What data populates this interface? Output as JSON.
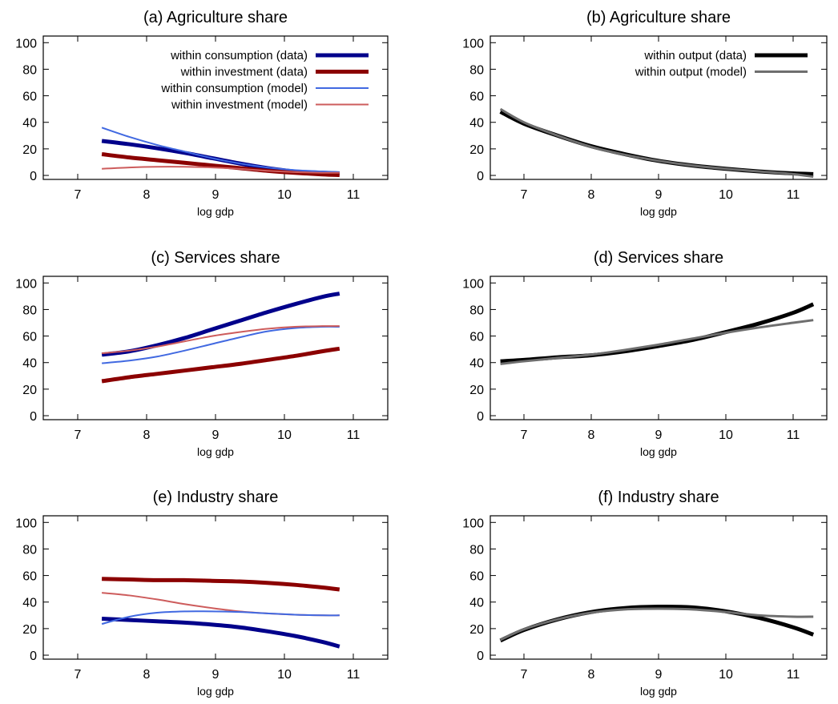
{
  "chart_data": [
    {
      "type": "line",
      "title": "(a) Agriculture share",
      "xlabel": "log gdp",
      "ylabel": "",
      "xlim": [
        6.5,
        11.5
      ],
      "ylim": [
        -3,
        105
      ],
      "xticks": [
        7,
        8,
        9,
        10,
        11
      ],
      "yticks": [
        0,
        20,
        40,
        60,
        80,
        100
      ],
      "grid": false,
      "legend": "top-right",
      "series": [
        {
          "name": "within consumption (data)",
          "color": "#00008b",
          "style": "data",
          "x": [
            7.35,
            7.75,
            8.15,
            8.55,
            8.95,
            9.35,
            9.75,
            10.15,
            10.55,
            10.8
          ],
          "y": [
            26,
            23.5,
            20.5,
            17,
            13,
            9,
            5.5,
            3,
            2,
            1.5
          ]
        },
        {
          "name": "within investment (data)",
          "color": "#8b0000",
          "style": "data",
          "x": [
            7.35,
            7.75,
            8.15,
            8.55,
            8.95,
            9.35,
            9.75,
            10.15,
            10.55,
            10.8
          ],
          "y": [
            16,
            13.5,
            11.5,
            9.5,
            7.5,
            5.5,
            3.5,
            2,
            0.8,
            0.3
          ]
        },
        {
          "name": "within consumption (model)",
          "color": "#4169e1",
          "style": "model",
          "x": [
            7.35,
            7.75,
            8.15,
            8.55,
            8.95,
            9.35,
            9.75,
            10.15,
            10.55,
            10.8
          ],
          "y": [
            36,
            29,
            23,
            18,
            13,
            9,
            6,
            4,
            3,
            2.5
          ]
        },
        {
          "name": "within investment (model)",
          "color": "#cd5c5c",
          "style": "model",
          "x": [
            7.35,
            7.75,
            8.15,
            8.55,
            8.95,
            9.35,
            9.75,
            10.15,
            10.55,
            10.8
          ],
          "y": [
            5,
            6,
            6.5,
            6.5,
            6,
            5,
            3.5,
            2.5,
            2,
            2
          ]
        }
      ]
    },
    {
      "type": "line",
      "title": "(b) Agriculture share",
      "xlabel": "log gdp",
      "ylabel": "",
      "xlim": [
        6.5,
        11.5
      ],
      "ylim": [
        -3,
        105
      ],
      "xticks": [
        7,
        8,
        9,
        10,
        11
      ],
      "yticks": [
        0,
        20,
        40,
        60,
        80,
        100
      ],
      "grid": false,
      "legend": "top-right",
      "series": [
        {
          "name": "within output (data)",
          "color": "#000000",
          "style": "data",
          "x": [
            6.65,
            7.0,
            7.5,
            8.0,
            8.5,
            9.0,
            9.5,
            10.0,
            10.5,
            11.0,
            11.3
          ],
          "y": [
            48,
            39,
            30,
            22,
            16,
            11,
            7.5,
            5,
            3,
            1.5,
            1
          ]
        },
        {
          "name": "within output (model)",
          "color": "#6e6e6e",
          "style": "model-thick",
          "x": [
            6.65,
            7.0,
            7.5,
            8.0,
            8.5,
            9.0,
            9.5,
            10.0,
            10.5,
            11.0,
            11.3
          ],
          "y": [
            50,
            40,
            30,
            21.5,
            15.5,
            11,
            7.5,
            5,
            3,
            1,
            -1
          ]
        }
      ]
    },
    {
      "type": "line",
      "title": "(c) Services share",
      "xlabel": "log gdp",
      "ylabel": "",
      "xlim": [
        6.5,
        11.5
      ],
      "ylim": [
        -3,
        105
      ],
      "xticks": [
        7,
        8,
        9,
        10,
        11
      ],
      "yticks": [
        0,
        20,
        40,
        60,
        80,
        100
      ],
      "grid": false,
      "legend": "none",
      "series": [
        {
          "color": "#00008b",
          "style": "data",
          "x": [
            7.35,
            7.75,
            8.15,
            8.55,
            8.95,
            9.35,
            9.75,
            10.15,
            10.55,
            10.8
          ],
          "y": [
            46,
            48.5,
            53,
            58.5,
            65,
            71.5,
            78,
            84,
            89.5,
            92
          ]
        },
        {
          "color": "#8b0000",
          "style": "data",
          "x": [
            7.35,
            7.75,
            8.15,
            8.55,
            8.95,
            9.35,
            9.75,
            10.15,
            10.55,
            10.8
          ],
          "y": [
            26,
            29,
            31.5,
            34,
            36.5,
            39,
            42,
            45,
            48.5,
            50.5
          ]
        },
        {
          "color": "#4169e1",
          "style": "model",
          "x": [
            7.35,
            7.75,
            8.15,
            8.55,
            8.95,
            9.35,
            9.75,
            10.15,
            10.55,
            10.8
          ],
          "y": [
            39.5,
            41.5,
            44.5,
            49,
            54,
            59,
            63.5,
            66,
            67,
            67
          ]
        },
        {
          "color": "#cd5c5c",
          "style": "model",
          "x": [
            7.35,
            7.75,
            8.15,
            8.55,
            8.95,
            9.35,
            9.75,
            10.15,
            10.55,
            10.8
          ],
          "y": [
            47,
            49,
            52,
            56,
            60,
            63,
            65.5,
            67,
            67.5,
            67.5
          ]
        }
      ]
    },
    {
      "type": "line",
      "title": "(d) Services share",
      "xlabel": "log gdp",
      "ylabel": "",
      "xlim": [
        6.5,
        11.5
      ],
      "ylim": [
        -3,
        105
      ],
      "xticks": [
        7,
        8,
        9,
        10,
        11
      ],
      "yticks": [
        0,
        20,
        40,
        60,
        80,
        100
      ],
      "grid": false,
      "legend": "none",
      "series": [
        {
          "color": "#000000",
          "style": "data",
          "x": [
            6.65,
            7.0,
            7.5,
            8.0,
            8.5,
            9.0,
            9.5,
            10.0,
            10.5,
            11.0,
            11.3
          ],
          "y": [
            41,
            42,
            44,
            45.5,
            48.5,
            52.5,
            57,
            63,
            69.5,
            77.5,
            84
          ]
        },
        {
          "color": "#6e6e6e",
          "style": "model-thick",
          "x": [
            6.65,
            7.0,
            7.5,
            8.0,
            8.5,
            9.0,
            9.5,
            10.0,
            10.5,
            11.0,
            11.3
          ],
          "y": [
            39,
            41,
            43.5,
            46,
            49.5,
            53.5,
            58,
            62.5,
            66.5,
            70,
            72
          ]
        }
      ]
    },
    {
      "type": "line",
      "title": "(e) Industry share",
      "xlabel": "log gdp",
      "ylabel": "",
      "xlim": [
        6.5,
        11.5
      ],
      "ylim": [
        -3,
        105
      ],
      "xticks": [
        7,
        8,
        9,
        10,
        11
      ],
      "yticks": [
        0,
        20,
        40,
        60,
        80,
        100
      ],
      "grid": false,
      "legend": "none",
      "series": [
        {
          "color": "#8b0000",
          "style": "data",
          "x": [
            7.35,
            7.75,
            8.15,
            8.55,
            8.95,
            9.35,
            9.75,
            10.15,
            10.55,
            10.8
          ],
          "y": [
            57.5,
            57,
            56.5,
            56.5,
            56,
            55.5,
            54.5,
            53,
            51,
            49.5
          ]
        },
        {
          "color": "#00008b",
          "style": "data",
          "x": [
            7.35,
            7.75,
            8.15,
            8.55,
            8.95,
            9.35,
            9.75,
            10.15,
            10.55,
            10.8
          ],
          "y": [
            27.5,
            26.5,
            25.5,
            24.5,
            23,
            21,
            18,
            14.5,
            10,
            6.5
          ]
        },
        {
          "color": "#cd5c5c",
          "style": "model",
          "x": [
            7.35,
            7.75,
            8.15,
            8.55,
            8.95,
            9.35,
            9.75,
            10.15,
            10.55,
            10.8
          ],
          "y": [
            47,
            45,
            42,
            38.5,
            35.5,
            33,
            31.5,
            30.5,
            30,
            30
          ]
        },
        {
          "color": "#4169e1",
          "style": "model",
          "x": [
            7.35,
            7.75,
            8.15,
            8.55,
            8.95,
            9.35,
            9.75,
            10.15,
            10.55,
            10.8
          ],
          "y": [
            23.5,
            29,
            32,
            33,
            33,
            32.5,
            31.5,
            30.5,
            30,
            30
          ]
        }
      ]
    },
    {
      "type": "line",
      "title": "(f) Industry share",
      "xlabel": "log gdp",
      "ylabel": "",
      "xlim": [
        6.5,
        11.5
      ],
      "ylim": [
        -3,
        105
      ],
      "xticks": [
        7,
        8,
        9,
        10,
        11
      ],
      "yticks": [
        0,
        20,
        40,
        60,
        80,
        100
      ],
      "grid": false,
      "legend": "none",
      "series": [
        {
          "color": "#000000",
          "style": "data",
          "x": [
            6.65,
            7.0,
            7.5,
            8.0,
            8.5,
            9.0,
            9.5,
            10.0,
            10.5,
            11.0,
            11.3
          ],
          "y": [
            11,
            19,
            27,
            32.5,
            35.5,
            36.5,
            36,
            33,
            28,
            21,
            15.5
          ]
        },
        {
          "color": "#6e6e6e",
          "style": "model-thick",
          "x": [
            6.65,
            7.0,
            7.5,
            8.0,
            8.5,
            9.0,
            9.5,
            10.0,
            10.5,
            11.0,
            11.3
          ],
          "y": [
            11.5,
            19.5,
            27,
            32,
            34.5,
            35,
            34.5,
            32.5,
            30,
            29,
            29
          ]
        }
      ]
    }
  ]
}
